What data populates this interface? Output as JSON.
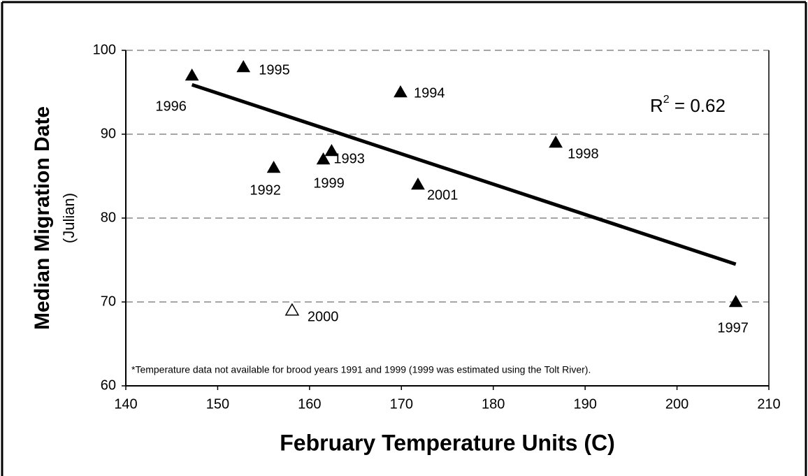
{
  "chart_data": {
    "type": "scatter",
    "x_label": "February Temperature Units (C)",
    "y_label": "Median Migration Date",
    "y_sublabel": "(Julian)",
    "footnote": "*Temperature data not available for brood years 1991 and 1999 (1999 was estimated using the Tolt River).",
    "annotation": {
      "base": "R",
      "sup": "2",
      "rest": " = 0.62"
    },
    "labels": [
      "1996",
      "1995",
      "1994",
      "1998",
      "1993",
      "1999",
      "1992",
      "2001",
      "2000",
      "1997"
    ],
    "x": [
      147.2,
      152.8,
      169.9,
      186.8,
      162.4,
      161.5,
      156.1,
      171.8,
      158.1,
      206.4
    ],
    "values": [
      97,
      98,
      95,
      89,
      88,
      87,
      86,
      84,
      69,
      70
    ],
    "filled": [
      true,
      true,
      true,
      true,
      true,
      true,
      true,
      true,
      false,
      true
    ],
    "color": "#000000",
    "trendline": {
      "x": [
        147.2,
        206.4
      ],
      "y": [
        95.9,
        74.5
      ]
    },
    "xlim": [
      140,
      210
    ],
    "xticks": [
      140,
      150,
      160,
      170,
      180,
      190,
      200,
      210
    ],
    "ylim": [
      60,
      100
    ],
    "yticks": [
      60,
      70,
      80,
      90,
      100
    ],
    "grid": true
  }
}
